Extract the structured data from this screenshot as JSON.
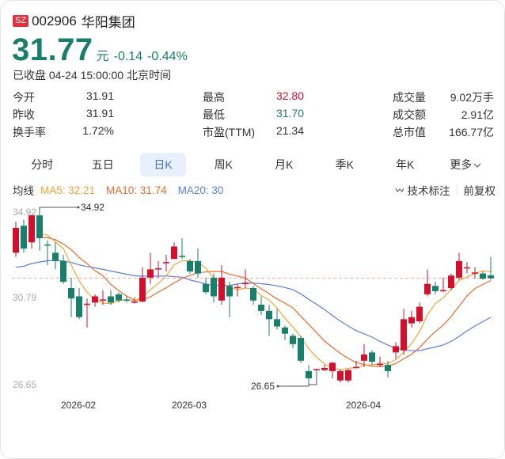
{
  "header": {
    "exchange_badge": "SZ",
    "code": "002906",
    "name": "华阳集团",
    "price": "31.77",
    "unit": "元",
    "change": "-0.14",
    "change_pct": "-0.44%",
    "status": "已收盘 04-24 15:00:00 北京时间"
  },
  "stats": [
    [
      {
        "label": "今开",
        "value": "31.91",
        "color": "#333333"
      },
      {
        "label": "最高",
        "value": "32.80",
        "color": "#d0102c"
      },
      {
        "label": "成交量",
        "value": "9.02万手",
        "color": "#333333"
      }
    ],
    [
      {
        "label": "昨收",
        "value": "31.91",
        "color": "#333333"
      },
      {
        "label": "最低",
        "value": "31.70",
        "color": "#1a7f6a"
      },
      {
        "label": "成交额",
        "value": "2.91亿",
        "color": "#333333"
      }
    ],
    [
      {
        "label": "换手率",
        "value": "1.72%",
        "color": "#333333"
      },
      {
        "label": "市盈(TTM)",
        "value": "21.34",
        "color": "#333333"
      },
      {
        "label": "总市值",
        "value": "166.77亿",
        "color": "#333333"
      }
    ]
  ],
  "tabs": [
    {
      "label": "分时",
      "active": false
    },
    {
      "label": "五日",
      "active": false
    },
    {
      "label": "日K",
      "active": true
    },
    {
      "label": "周K",
      "active": false
    },
    {
      "label": "月K",
      "active": false
    },
    {
      "label": "季K",
      "active": false
    },
    {
      "label": "年K",
      "active": false
    },
    {
      "label": "更多",
      "active": false
    }
  ],
  "ma_bar": {
    "label": "均线",
    "ma5": "MA5: 32.21",
    "ma10": "MA10: 31.74",
    "ma20": "MA20: 30",
    "tech_label": "技术标注",
    "adjust_label": "前复权"
  },
  "colors": {
    "up": "#d0102c",
    "down": "#1a7f6a",
    "ma5": "#f0a53a",
    "ma10": "#e86b2c",
    "ma20": "#5b7fd8",
    "accent": "#3a6fd8"
  },
  "chart_data": {
    "type": "candlestick",
    "title": "华阳集团 日K",
    "y_labels": [
      "34.92",
      "30.79",
      "26.65"
    ],
    "ylim": [
      26.65,
      34.92
    ],
    "x_labels": [
      "2026-02",
      "2026-03",
      "2026-04"
    ],
    "high_marker": "34.92",
    "low_marker": "26.65",
    "current_price_line": 31.77,
    "candles": [
      {
        "o": 33.0,
        "c": 34.2,
        "h": 34.5,
        "l": 32.8
      },
      {
        "o": 34.3,
        "c": 33.2,
        "h": 34.6,
        "l": 33.0
      },
      {
        "o": 33.5,
        "c": 34.8,
        "h": 34.85,
        "l": 33.2
      },
      {
        "o": 34.8,
        "c": 33.7,
        "h": 34.92,
        "l": 33.1
      },
      {
        "o": 33.4,
        "c": 33.35,
        "h": 33.6,
        "l": 32.4
      },
      {
        "o": 33.0,
        "c": 32.6,
        "h": 33.5,
        "l": 32.2
      },
      {
        "o": 32.6,
        "c": 31.6,
        "h": 32.9,
        "l": 31.5
      },
      {
        "o": 31.3,
        "c": 30.8,
        "h": 31.8,
        "l": 29.9
      },
      {
        "o": 30.9,
        "c": 29.9,
        "h": 31.3,
        "l": 29.8
      },
      {
        "o": 30.5,
        "c": 30.55,
        "h": 30.8,
        "l": 29.4
      },
      {
        "o": 30.6,
        "c": 30.9,
        "h": 31.0,
        "l": 30.4
      },
      {
        "o": 30.7,
        "c": 30.75,
        "h": 31.2,
        "l": 30.5
      },
      {
        "o": 30.9,
        "c": 30.6,
        "h": 31.2,
        "l": 30.5
      },
      {
        "o": 31.0,
        "c": 30.7,
        "h": 31.1,
        "l": 30.6
      },
      {
        "o": 30.75,
        "c": 30.7,
        "h": 30.9,
        "l": 30.6
      },
      {
        "o": 30.6,
        "c": 30.65,
        "h": 30.85,
        "l": 30.55
      },
      {
        "o": 30.65,
        "c": 31.8,
        "h": 32.3,
        "l": 30.6
      },
      {
        "o": 31.8,
        "c": 32.2,
        "h": 33.0,
        "l": 31.5
      },
      {
        "o": 32.2,
        "c": 32.25,
        "h": 32.6,
        "l": 31.8
      },
      {
        "o": 32.5,
        "c": 32.55,
        "h": 32.9,
        "l": 32.1
      },
      {
        "o": 32.7,
        "c": 33.3,
        "h": 33.5,
        "l": 32.7
      },
      {
        "o": 32.85,
        "c": 32.8,
        "h": 33.7,
        "l": 32.7
      },
      {
        "o": 32.6,
        "c": 32.1,
        "h": 32.7,
        "l": 32.0
      },
      {
        "o": 32.6,
        "c": 32.0,
        "h": 33.2,
        "l": 31.8
      },
      {
        "o": 31.5,
        "c": 31.1,
        "h": 31.8,
        "l": 31.0
      },
      {
        "o": 31.8,
        "c": 30.9,
        "h": 32.0,
        "l": 30.6
      },
      {
        "o": 30.7,
        "c": 31.8,
        "h": 32.4,
        "l": 30.5
      },
      {
        "o": 31.4,
        "c": 30.9,
        "h": 31.6,
        "l": 29.9
      },
      {
        "o": 31.3,
        "c": 31.35,
        "h": 31.5,
        "l": 30.9
      },
      {
        "o": 31.5,
        "c": 31.55,
        "h": 32.2,
        "l": 31.3
      },
      {
        "o": 31.3,
        "c": 30.7,
        "h": 31.4,
        "l": 30.5
      },
      {
        "o": 30.5,
        "c": 30.2,
        "h": 30.9,
        "l": 30.0
      },
      {
        "o": 30.2,
        "c": 29.8,
        "h": 30.5,
        "l": 29.0
      },
      {
        "o": 29.8,
        "c": 29.45,
        "h": 30.3,
        "l": 29.3
      },
      {
        "o": 29.4,
        "c": 29.1,
        "h": 29.5,
        "l": 28.8
      },
      {
        "o": 29.0,
        "c": 28.6,
        "h": 29.1,
        "l": 28.4
      },
      {
        "o": 28.9,
        "c": 27.8,
        "h": 29.0,
        "l": 27.7
      },
      {
        "o": 27.3,
        "c": 26.95,
        "h": 27.6,
        "l": 26.65
      },
      {
        "o": 27.35,
        "c": 27.4,
        "h": 27.4,
        "l": 26.9
      },
      {
        "o": 27.35,
        "c": 27.45,
        "h": 27.6,
        "l": 27.3
      },
      {
        "o": 27.3,
        "c": 27.7,
        "h": 27.75,
        "l": 26.95
      },
      {
        "o": 26.85,
        "c": 27.3,
        "h": 27.4,
        "l": 26.75
      },
      {
        "o": 26.85,
        "c": 27.35,
        "h": 27.4,
        "l": 26.75
      },
      {
        "o": 27.45,
        "c": 27.5,
        "h": 27.8,
        "l": 27.45
      },
      {
        "o": 27.8,
        "c": 28.1,
        "h": 28.6,
        "l": 27.5
      },
      {
        "o": 28.2,
        "c": 27.75,
        "h": 28.3,
        "l": 27.6
      },
      {
        "o": 27.6,
        "c": 27.65,
        "h": 28.0,
        "l": 27.5
      },
      {
        "o": 27.6,
        "c": 27.3,
        "h": 27.8,
        "l": 27.0
      },
      {
        "o": 28.2,
        "c": 28.5,
        "h": 28.7,
        "l": 27.9
      },
      {
        "o": 28.3,
        "c": 29.8,
        "h": 30.3,
        "l": 28.1
      },
      {
        "o": 29.6,
        "c": 29.9,
        "h": 30.2,
        "l": 29.4
      },
      {
        "o": 29.7,
        "c": 30.4,
        "h": 30.6,
        "l": 29.6
      },
      {
        "o": 31.0,
        "c": 31.5,
        "h": 32.2,
        "l": 30.9
      },
      {
        "o": 31.4,
        "c": 31.15,
        "h": 31.6,
        "l": 31.0
      },
      {
        "o": 31.15,
        "c": 31.2,
        "h": 31.8,
        "l": 31.1
      },
      {
        "o": 31.3,
        "c": 31.9,
        "h": 32.0,
        "l": 31.2
      },
      {
        "o": 31.8,
        "c": 32.6,
        "h": 33.0,
        "l": 31.7
      },
      {
        "o": 32.25,
        "c": 32.3,
        "h": 32.55,
        "l": 32.0
      },
      {
        "o": 32.0,
        "c": 32.05,
        "h": 32.3,
        "l": 31.75
      },
      {
        "o": 32.0,
        "c": 31.75,
        "h": 32.1,
        "l": 31.7
      },
      {
        "o": 31.91,
        "c": 31.77,
        "h": 32.8,
        "l": 31.7
      }
    ],
    "ma5_last": 32.21,
    "ma10_last": 31.74,
    "ma20_last": 30.0
  }
}
